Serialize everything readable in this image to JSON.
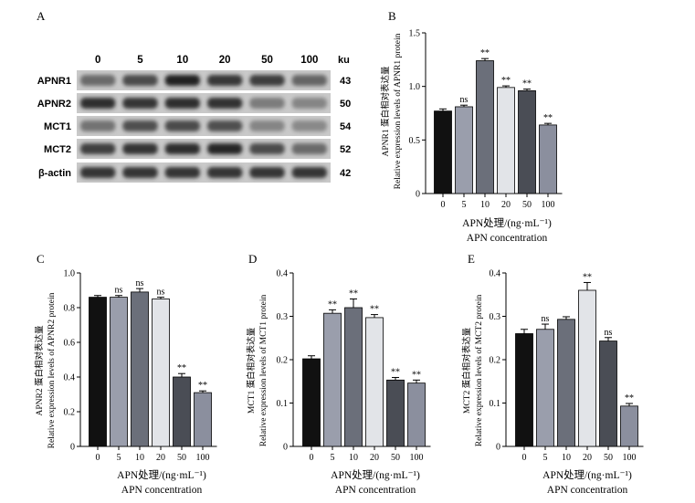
{
  "panel_labels": [
    "A",
    "B",
    "C",
    "D",
    "E"
  ],
  "palette": [
    "#111111",
    "#9a9eac",
    "#6b6f7a",
    "#e2e4e8",
    "#4a4d55",
    "#8b8f9e"
  ],
  "western_blot": {
    "concentrations": [
      "0",
      "5",
      "10",
      "20",
      "50",
      "100"
    ],
    "unit": "ku",
    "rows": [
      {
        "protein": "APNR1",
        "kda": "43",
        "intensity": [
          0.55,
          0.72,
          0.95,
          0.82,
          0.8,
          0.58
        ]
      },
      {
        "protein": "APNR2",
        "kda": "50",
        "intensity": [
          0.88,
          0.85,
          0.88,
          0.86,
          0.45,
          0.4
        ]
      },
      {
        "protein": "MCT1",
        "kda": "54",
        "intensity": [
          0.5,
          0.7,
          0.72,
          0.7,
          0.4,
          0.38
        ]
      },
      {
        "protein": "MCT2",
        "kda": "52",
        "intensity": [
          0.78,
          0.85,
          0.88,
          0.92,
          0.72,
          0.55
        ]
      },
      {
        "protein": "β-actin",
        "kda": "42",
        "intensity": [
          0.85,
          0.85,
          0.85,
          0.85,
          0.85,
          0.85
        ]
      }
    ]
  },
  "chart_data": [
    {
      "panel": "B",
      "type": "bar",
      "categories": [
        "0",
        "5",
        "10",
        "20",
        "50",
        "100"
      ],
      "values": [
        0.77,
        0.81,
        1.24,
        0.99,
        0.96,
        0.64
      ],
      "errors": [
        0.02,
        0.015,
        0.02,
        0.015,
        0.015,
        0.015
      ],
      "significance": [
        "",
        "ns",
        "**",
        "**",
        "**",
        "**"
      ],
      "ylim": [
        0,
        1.5
      ],
      "yticks": [
        "0",
        "0.5",
        "1.0",
        "1.5"
      ],
      "ylabel_cn": "APNR1 蛋白相对表达量",
      "ylabel_en": "Relative expression levels of APNR1 protein",
      "xlabel_cn": "APN处理/(ng·mL⁻¹)",
      "xlabel_en": "APN concentration"
    },
    {
      "panel": "C",
      "type": "bar",
      "categories": [
        "0",
        "5",
        "10",
        "20",
        "50",
        "100"
      ],
      "values": [
        0.86,
        0.86,
        0.89,
        0.85,
        0.4,
        0.31
      ],
      "errors": [
        0.01,
        0.01,
        0.02,
        0.01,
        0.02,
        0.01
      ],
      "significance": [
        "",
        "ns",
        "ns",
        "ns",
        "**",
        "**"
      ],
      "ylim": [
        0,
        1.0
      ],
      "yticks": [
        "0",
        "0.2",
        "0.4",
        "0.6",
        "0.8",
        "1.0"
      ],
      "ylabel_cn": "APNR2 蛋白相对表达量",
      "ylabel_en": "Relative expression levels of APNR2 protein",
      "xlabel_cn": "APN处理/(ng·mL⁻¹)",
      "xlabel_en": "APN concentration"
    },
    {
      "panel": "D",
      "type": "bar",
      "categories": [
        "0",
        "5",
        "10",
        "20",
        "50",
        "100"
      ],
      "values": [
        0.202,
        0.307,
        0.32,
        0.297,
        0.153,
        0.146
      ],
      "errors": [
        0.007,
        0.008,
        0.02,
        0.007,
        0.006,
        0.007
      ],
      "significance": [
        "",
        "**",
        "**",
        "**",
        "**",
        "**"
      ],
      "ylim": [
        0,
        0.4
      ],
      "yticks": [
        "0",
        "0.1",
        "0.2",
        "0.3",
        "0.4"
      ],
      "ylabel_cn": "MCT1 蛋白相对表达量",
      "ylabel_en": "Relative expression levels of MCT1 protein",
      "xlabel_cn": "APN处理/(ng·mL⁻¹)",
      "xlabel_en": "APN concentration"
    },
    {
      "panel": "E",
      "type": "bar",
      "categories": [
        "0",
        "5",
        "10",
        "20",
        "50",
        "100"
      ],
      "values": [
        0.26,
        0.27,
        0.293,
        0.36,
        0.243,
        0.093
      ],
      "errors": [
        0.01,
        0.012,
        0.006,
        0.018,
        0.008,
        0.006
      ],
      "significance": [
        "",
        "ns",
        "",
        "**",
        "ns",
        "**"
      ],
      "ylim": [
        0,
        0.4
      ],
      "yticks": [
        "0",
        "0.1",
        "0.2",
        "0.3",
        "0.4"
      ],
      "ylabel_cn": "MCT2 蛋白相对表达量",
      "ylabel_en": "Relative expression levels of MCT2 protein",
      "xlabel_cn": "APN处理/(ng·mL⁻¹)",
      "xlabel_en": "APN concentration"
    }
  ]
}
